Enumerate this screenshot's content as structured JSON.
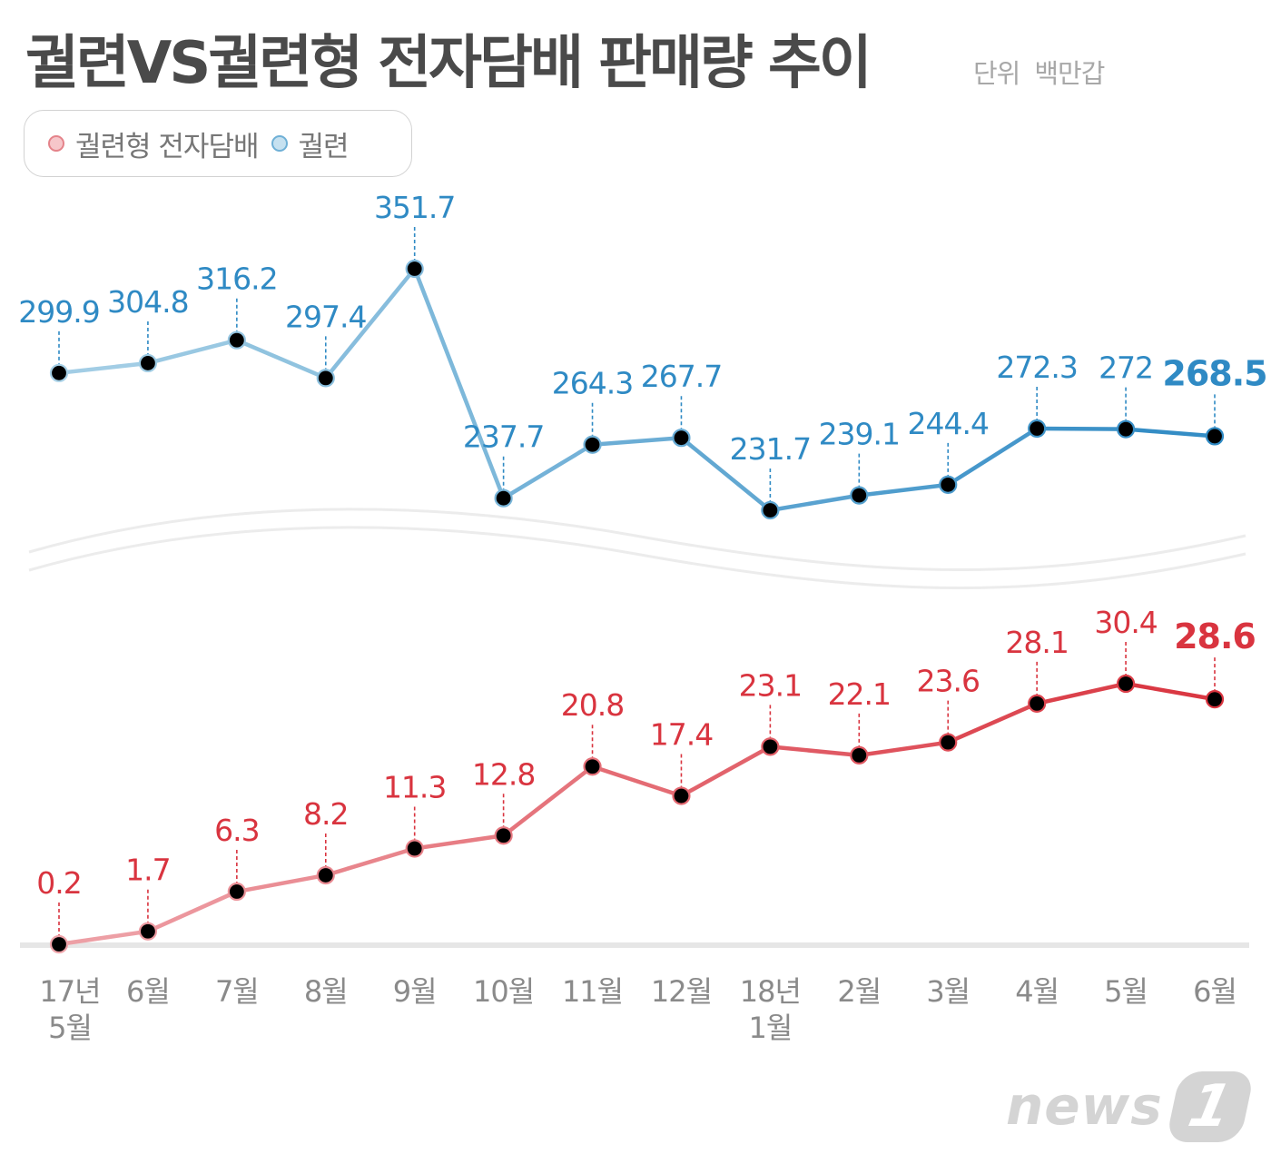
{
  "title": "궐련VS궐련형 전자담배 판매량 추이",
  "unit": {
    "label": "단위",
    "value": "백만갑"
  },
  "legend": [
    {
      "name": "궐련형 전자담배",
      "color": "red"
    },
    {
      "name": "궐련",
      "color": "blue"
    }
  ],
  "logo": {
    "text": "news",
    "badge": "1"
  },
  "colors": {
    "cigarette_light": "#a7d0e6",
    "cigarette_dark": "#2f8ac4",
    "cigarette_label": "#2f8ac4",
    "ecig_light": "#eea3a9",
    "ecig_dark": "#d9343f",
    "ecig_label": "#d9343f",
    "axis": "#e6e6e6",
    "xlabel": "#8a8a8a"
  },
  "chart_data": {
    "type": "line",
    "categories": [
      "17년 5월",
      "6월",
      "7월",
      "8월",
      "9월",
      "10월",
      "11월",
      "12월",
      "18년 1월",
      "2월",
      "3월",
      "4월",
      "5월",
      "6월"
    ],
    "x_tick_labels": [
      [
        "17년",
        "5월"
      ],
      [
        "6월"
      ],
      [
        "7월"
      ],
      [
        "8월"
      ],
      [
        "9월"
      ],
      [
        "10월"
      ],
      [
        "11월"
      ],
      [
        "12월"
      ],
      [
        "18년",
        "1월"
      ],
      [
        "2월"
      ],
      [
        "3월"
      ],
      [
        "4월"
      ],
      [
        "5월"
      ],
      [
        "6월"
      ]
    ],
    "series": [
      {
        "name": "궐련",
        "values": [
          299.9,
          304.8,
          316.2,
          297.4,
          351.7,
          237.7,
          264.3,
          267.7,
          231.7,
          239.1,
          244.4,
          272.3,
          272,
          268.5
        ],
        "labels": [
          "299.9",
          "304.8",
          "316.2",
          "297.4",
          "351.7",
          "237.7",
          "264.3",
          "267.7",
          "231.7",
          "239.1",
          "244.4",
          "272.3",
          "272",
          "268.5"
        ]
      },
      {
        "name": "궐련형 전자담배",
        "values": [
          0.2,
          1.7,
          6.3,
          8.2,
          11.3,
          12.8,
          20.8,
          17.4,
          23.1,
          22.1,
          23.6,
          28.1,
          30.4,
          28.6
        ],
        "labels": [
          "0.2",
          "1.7",
          "6.3",
          "8.2",
          "11.3",
          "12.8",
          "20.8",
          "17.4",
          "23.1",
          "22.1",
          "23.6",
          "28.1",
          "30.4",
          "28.6"
        ]
      }
    ],
    "axis_break": true,
    "grid": false
  }
}
